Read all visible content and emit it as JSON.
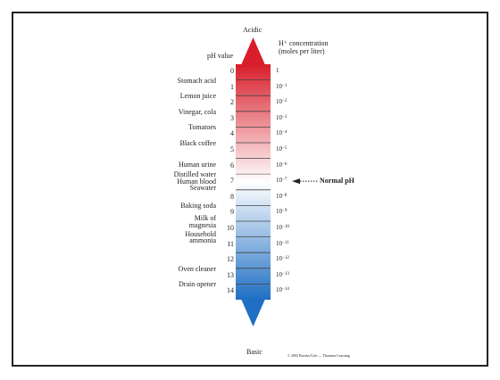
{
  "top_label": "Acidic",
  "bottom_label": "Basic",
  "ph_header": "pH value",
  "conc_header_1": "H⁺ concentration",
  "conc_header_2": "(moles per liter)",
  "normal_ph_label": "Normal pH",
  "copyright": "© 2002 Brooks/Cole — Thomson Learning",
  "substances": [
    {
      "name": "Stomach acid",
      "ph": 1
    },
    {
      "name": "Lemon juice",
      "ph": 2
    },
    {
      "name": "Vinegar, cola",
      "ph": 3
    },
    {
      "name": "Tomatoes",
      "ph": 4
    },
    {
      "name": "Black coffee",
      "ph": 5
    },
    {
      "name": "Human urine",
      "ph": 6.35
    },
    {
      "name": "Distilled water",
      "ph": 7
    },
    {
      "name": "Human blood",
      "ph": 7.45
    },
    {
      "name": "Seawater",
      "ph": 7.85
    },
    {
      "name": "Baking soda",
      "ph": 9
    },
    {
      "name": "Milk of",
      "ph": 9.8
    },
    {
      "name": "magnesia",
      "ph": 10.2
    },
    {
      "name": "Household",
      "ph": 10.8
    },
    {
      "name": "ammonia",
      "ph": 11.2
    },
    {
      "name": "Oven cleaner",
      "ph": 13
    },
    {
      "name": "Drain opener",
      "ph": 14
    }
  ],
  "ph_values": [
    "0",
    "1",
    "2",
    "3",
    "4",
    "5",
    "6",
    "7",
    "8",
    "9",
    "10",
    "11",
    "12",
    "13",
    "14"
  ],
  "concentrations": [
    {
      "base": "1",
      "exp": ""
    },
    {
      "base": "10",
      "exp": "−1"
    },
    {
      "base": "10",
      "exp": "−2"
    },
    {
      "base": "10",
      "exp": "−3"
    },
    {
      "base": "10",
      "exp": "−4"
    },
    {
      "base": "10",
      "exp": "−5"
    },
    {
      "base": "10",
      "exp": "−6"
    },
    {
      "base": "10",
      "exp": "−7"
    },
    {
      "base": "10",
      "exp": "−8"
    },
    {
      "base": "10",
      "exp": "−9"
    },
    {
      "base": "10",
      "exp": "−10"
    },
    {
      "base": "10",
      "exp": "−11"
    },
    {
      "base": "10",
      "exp": "−12"
    },
    {
      "base": "10",
      "exp": "−13"
    },
    {
      "base": "10",
      "exp": "−14"
    }
  ],
  "colors": {
    "acid": "#d81e2a",
    "neutral": "#ffffff",
    "base": "#1f6fc4",
    "line": "#444444"
  }
}
